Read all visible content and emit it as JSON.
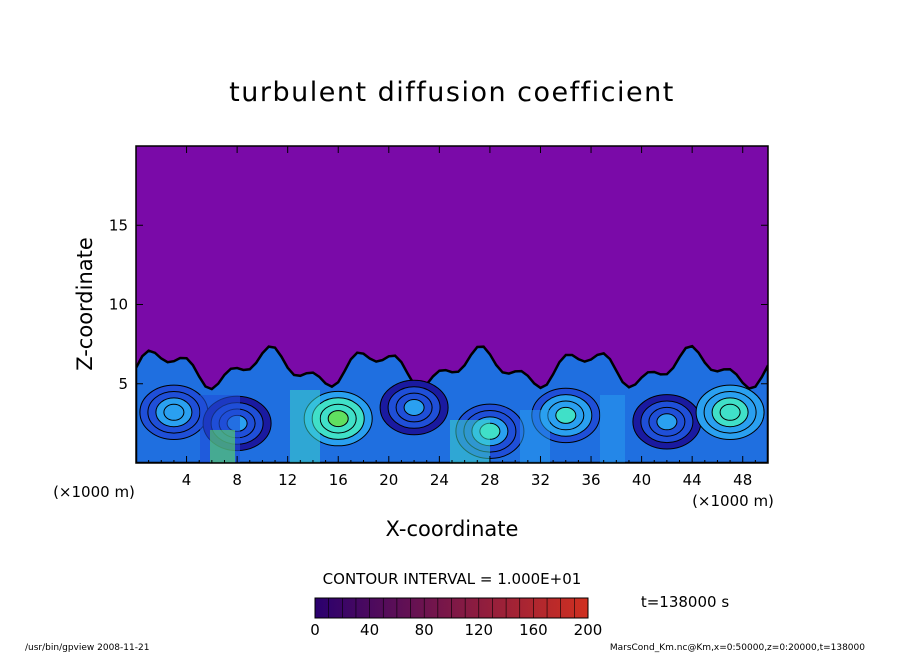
{
  "chart_data": {
    "type": "heatmap",
    "title": "turbulent diffusion coefficient",
    "xlabel": "X-coordinate",
    "ylabel": "Z-coordinate",
    "x_unit_label": "(×1000 m)",
    "xlim": [
      0,
      50
    ],
    "ylim": [
      0,
      20
    ],
    "x_ticks": [
      "4",
      "8",
      "12",
      "16",
      "20",
      "24",
      "28",
      "32",
      "36",
      "40",
      "44",
      "48"
    ],
    "x_tick_values": [
      4,
      8,
      12,
      16,
      20,
      24,
      28,
      32,
      36,
      40,
      44,
      48
    ],
    "y_ticks": [
      "5",
      "10",
      "15"
    ],
    "y_tick_values": [
      5,
      10,
      15
    ],
    "contour_interval_text": "CONTOUR INTERVAL = 1.000E+01",
    "colorbar": {
      "min": 0,
      "max": 200,
      "ticks": [
        "0",
        "40",
        "80",
        "120",
        "160",
        "200"
      ],
      "tick_values": [
        0,
        40,
        80,
        120,
        160,
        200
      ],
      "colors": [
        "#2a006e",
        "#1a1aa0",
        "#1f4fd8",
        "#2aa0f0",
        "#40e0c8",
        "#60e060",
        "#c0e040",
        "#e8c050",
        "#e07040",
        "#d03020"
      ]
    },
    "time_label": "t=138000 s",
    "background_color": "#7a0aa8",
    "turbulent_layer_top_km": 6,
    "eddies": [
      {
        "x": 3,
        "z": 3.2,
        "level": 40
      },
      {
        "x": 8,
        "z": 2.5,
        "level": 30
      },
      {
        "x": 16,
        "z": 2.8,
        "level": 70
      },
      {
        "x": 22,
        "z": 3.5,
        "level": 30
      },
      {
        "x": 28,
        "z": 2.0,
        "level": 45
      },
      {
        "x": 34,
        "z": 3.0,
        "level": 55
      },
      {
        "x": 42,
        "z": 2.6,
        "level": 30
      },
      {
        "x": 47,
        "z": 3.2,
        "level": 60
      }
    ]
  },
  "footer": {
    "left": "/usr/bin/gpview   2008-11-21",
    "right": "MarsCond_Km.nc@Km,x=0:50000,z=0:20000,t=138000"
  }
}
